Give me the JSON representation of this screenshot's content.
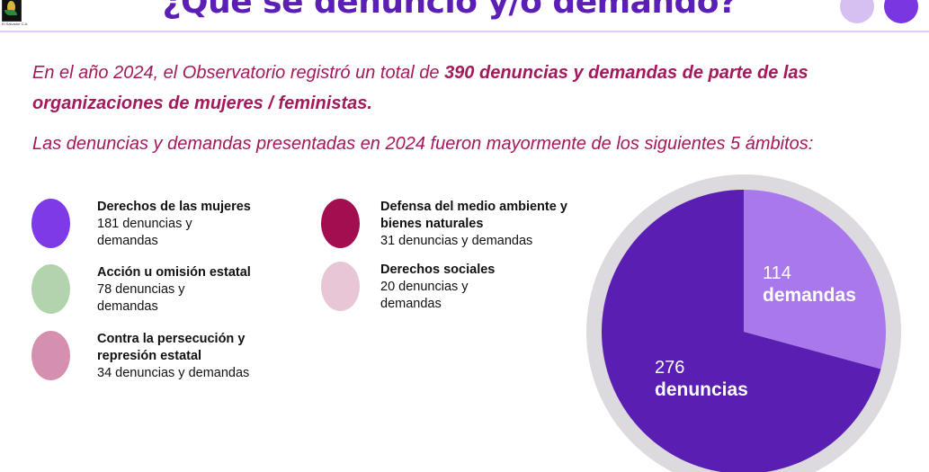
{
  "logo": {
    "text": "El Salvador C.A."
  },
  "header": {
    "title": "¿Qué se denunció y/o demandó?"
  },
  "intro": {
    "line1_pre": "En el año 2024, el Observatorio registró un total de ",
    "line1_bold": "390 denuncias y demandas de parte de las",
    "line2_bold": "organizaciones de mujeres / feministas.",
    "line3": "Las denuncias y demandas presentadas en 2024 fueron mayormente de los siguientes 5 ámbitos:"
  },
  "legend": [
    {
      "title": "Derechos de las mujeres",
      "line1": "181 denuncias y",
      "line2": "demandas",
      "color": "#7d3ae6"
    },
    {
      "title": "Acción u omisión estatal",
      "line1": "78 denuncias y",
      "line2": "demandas",
      "color": "#b2d4ad"
    },
    {
      "title": "Contra la persecución y",
      "title2": "represión estatal",
      "line1": "34 denuncias y demandas",
      "color": "#d590b0"
    },
    {
      "title": "Defensa del medio ambiente y",
      "title2": "bienes naturales",
      "line1": "31 denuncias y demandas",
      "color": "#a20e50"
    },
    {
      "title": "Derechos sociales",
      "line1": "20 denuncias y",
      "line2": "demandas",
      "color": "#e8c6d6"
    }
  ],
  "chart_data": {
    "type": "pie",
    "title": "",
    "categories": [
      "demandas",
      "denuncias"
    ],
    "values": [
      114,
      276
    ],
    "colors": [
      "#a979ec",
      "#5a1fb2"
    ],
    "labels": [
      {
        "value": "114",
        "name": "demandas"
      },
      {
        "value": "276",
        "name": "denuncias"
      }
    ]
  }
}
